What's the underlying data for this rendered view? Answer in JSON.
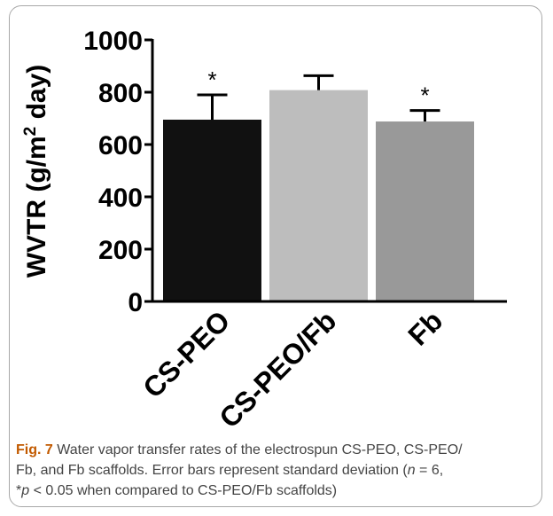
{
  "chart_data": {
    "type": "bar",
    "categories": [
      "CS-PEO",
      "CS-PEO/Fb",
      "Fb"
    ],
    "values": [
      695,
      808,
      688
    ],
    "errors": [
      95,
      55,
      42
    ],
    "colors": [
      "#111111",
      "#bdbdbd",
      "#999999"
    ],
    "annotations": [
      "*",
      "",
      "*"
    ],
    "ylabel_main": "WVTR (g/m",
    "ylabel_sup": "2",
    "ylabel_end": " day)",
    "ylim": [
      0,
      1000
    ],
    "yticks": [
      0,
      200,
      400,
      600,
      800,
      1000
    ],
    "grid": false
  },
  "caption": {
    "fig_label": "Fig. 7",
    "line1": " Water vapor transfer rates of the electrospun CS-PEO, CS-PEO/",
    "line2": "Fb, and Fb scaffolds. Error bars represent standard deviation (",
    "n_var": "n",
    "line2_end": " = 6,",
    "star": "*",
    "p_var": "p",
    "line3": " < 0.05 when compared to CS-PEO/Fb scaffolds)"
  }
}
